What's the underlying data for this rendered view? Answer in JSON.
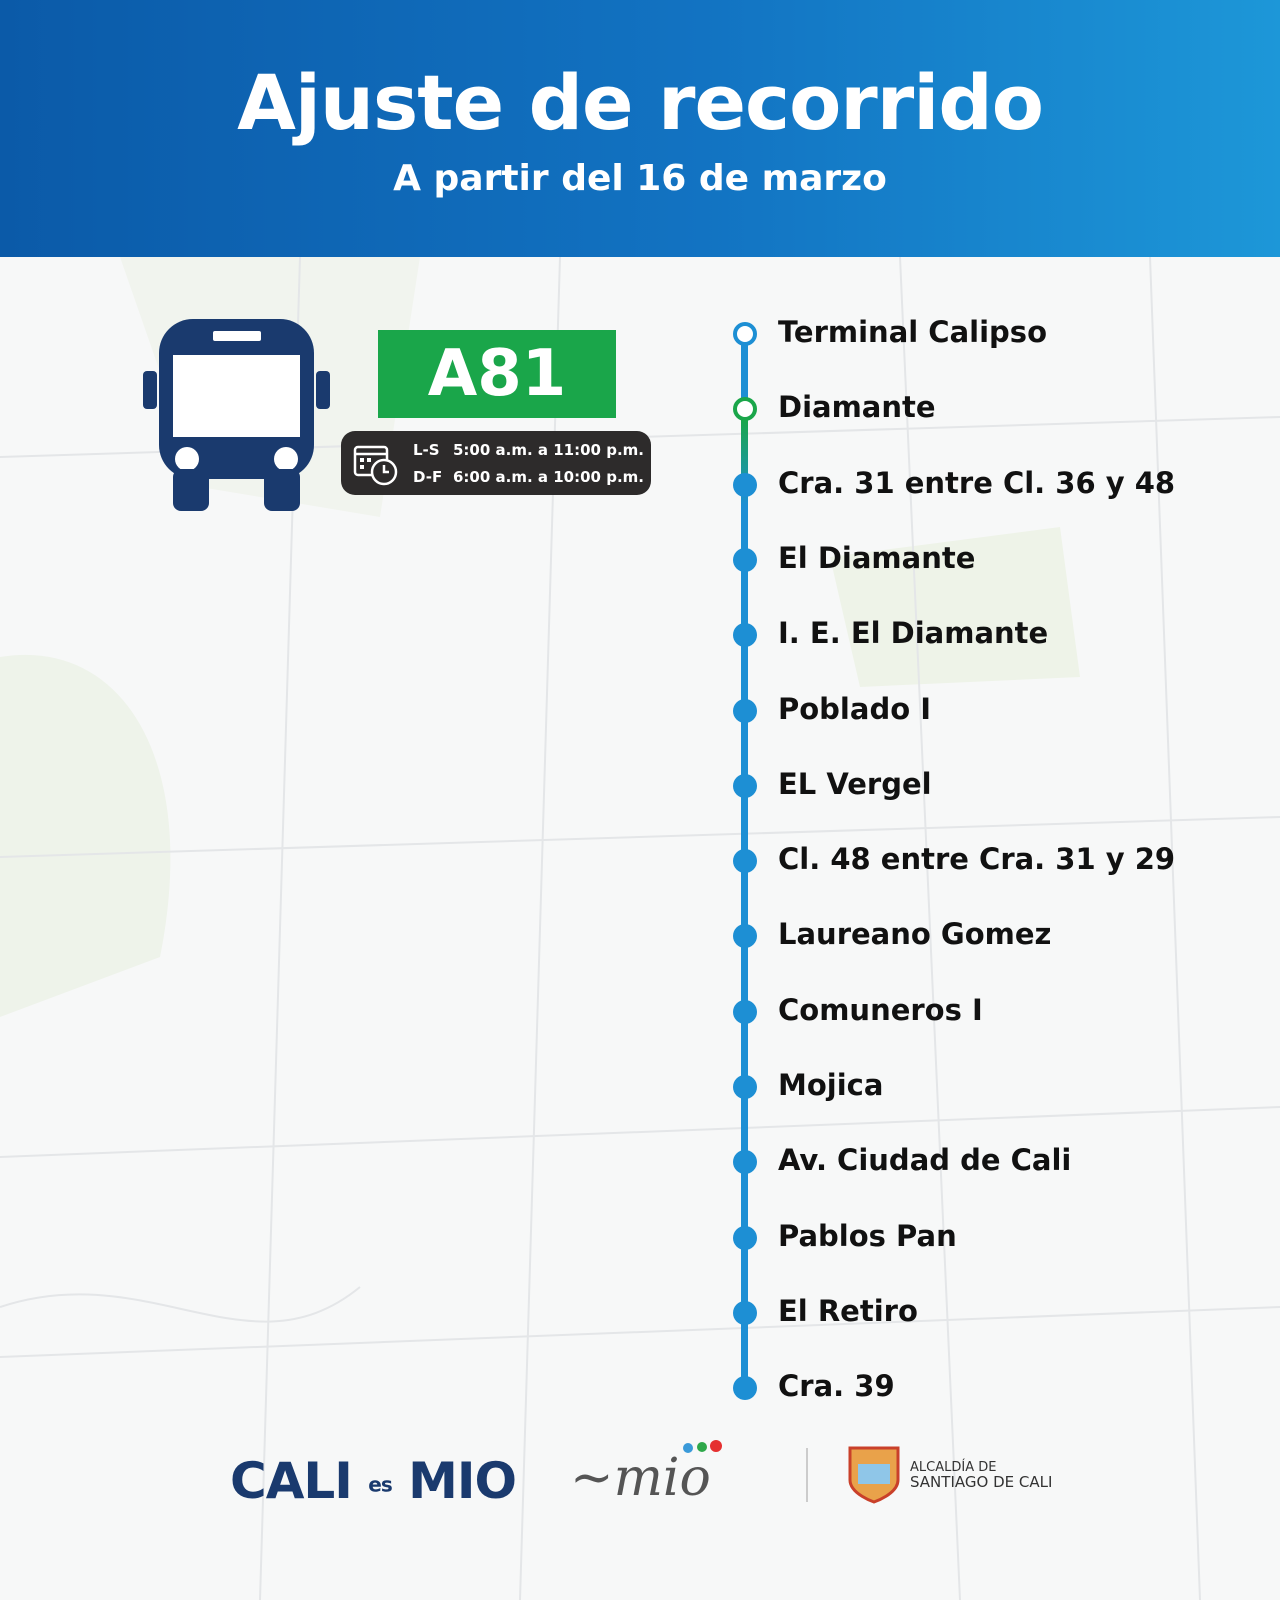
{
  "header": {
    "title": "Ajuste de recorrido",
    "subtitle": "A partir del 16 de marzo"
  },
  "route": {
    "code": "A81",
    "color": "#1aa64a",
    "schedule": [
      {
        "days": "L-S",
        "hours": "5:00 a.m. a 11:00 p.m."
      },
      {
        "days": "D-F",
        "hours": "6:00 a.m. a 10:00 p.m."
      }
    ]
  },
  "stops": [
    "Terminal Calipso",
    "Diamante",
    "Cra. 31 entre Cl. 36 y 48",
    "El Diamante",
    "I. E. El Diamante",
    "Poblado I",
    "EL Vergel",
    "Cl. 48 entre Cra. 31 y 29",
    "Laureano Gomez",
    "Comuneros I",
    "Mojica",
    "Av. Ciudad de Cali",
    "Pablos Pan",
    "El Retiro",
    "Cra. 39"
  ],
  "footer": {
    "logo1": "CALI es MIO",
    "logo2": "mio",
    "logo3_line1": "ALCALDÍA DE",
    "logo3_line2": "SANTIAGO DE CALI"
  },
  "colors": {
    "header": "#1273c2",
    "line": "#1d8fd4",
    "bus": "#1a3a6e"
  }
}
